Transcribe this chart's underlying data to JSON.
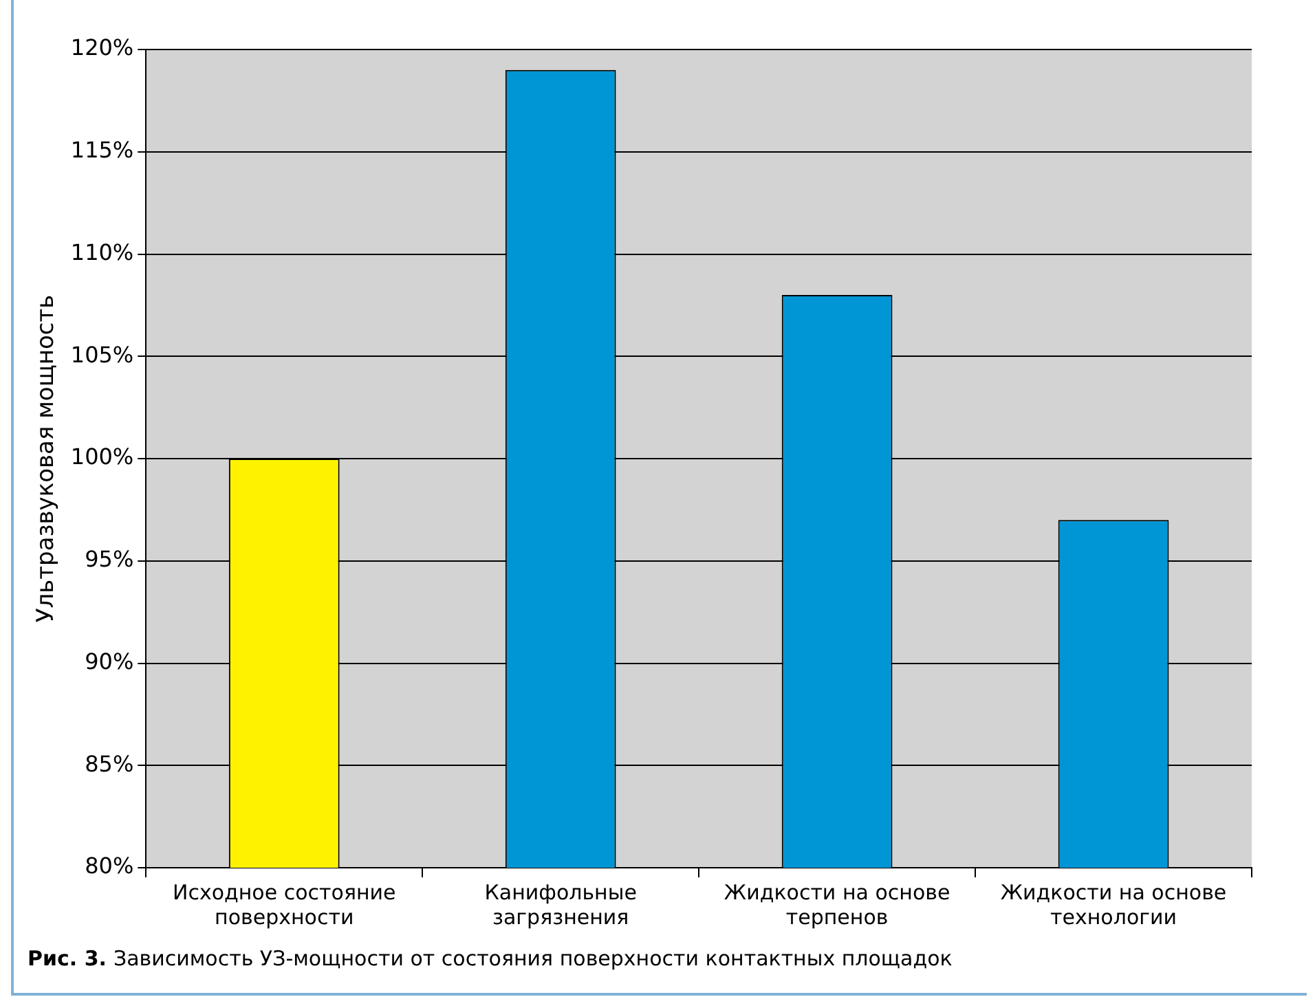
{
  "chart_data": {
    "type": "bar",
    "ylabel": "Ультразвуковая мощность",
    "categories": [
      "Исходное состояние поверхности",
      "Канифольные загрязнения",
      "Жидкости на основе терпенов",
      "Жидкости на основе технологии"
    ],
    "values": [
      100,
      119,
      108,
      97
    ],
    "colors": [
      "#fff200",
      "#0096d6",
      "#0096d6",
      "#0096d6"
    ],
    "ylim": [
      80,
      120
    ],
    "yticks": [
      {
        "value": 80,
        "label": "80%"
      },
      {
        "value": 85,
        "label": "85%"
      },
      {
        "value": 90,
        "label": "90%"
      },
      {
        "value": 95,
        "label": "95%"
      },
      {
        "value": 100,
        "label": "100%"
      },
      {
        "value": 105,
        "label": "105%"
      },
      {
        "value": 110,
        "label": "110%"
      },
      {
        "value": 115,
        "label": "115%"
      },
      {
        "value": 120,
        "label": "120%"
      }
    ],
    "grid": "y",
    "annotations": [
      "Рис. 3.",
      "Зависимость УЗ-мощности от состояния поверхности контактных площадок"
    ]
  }
}
